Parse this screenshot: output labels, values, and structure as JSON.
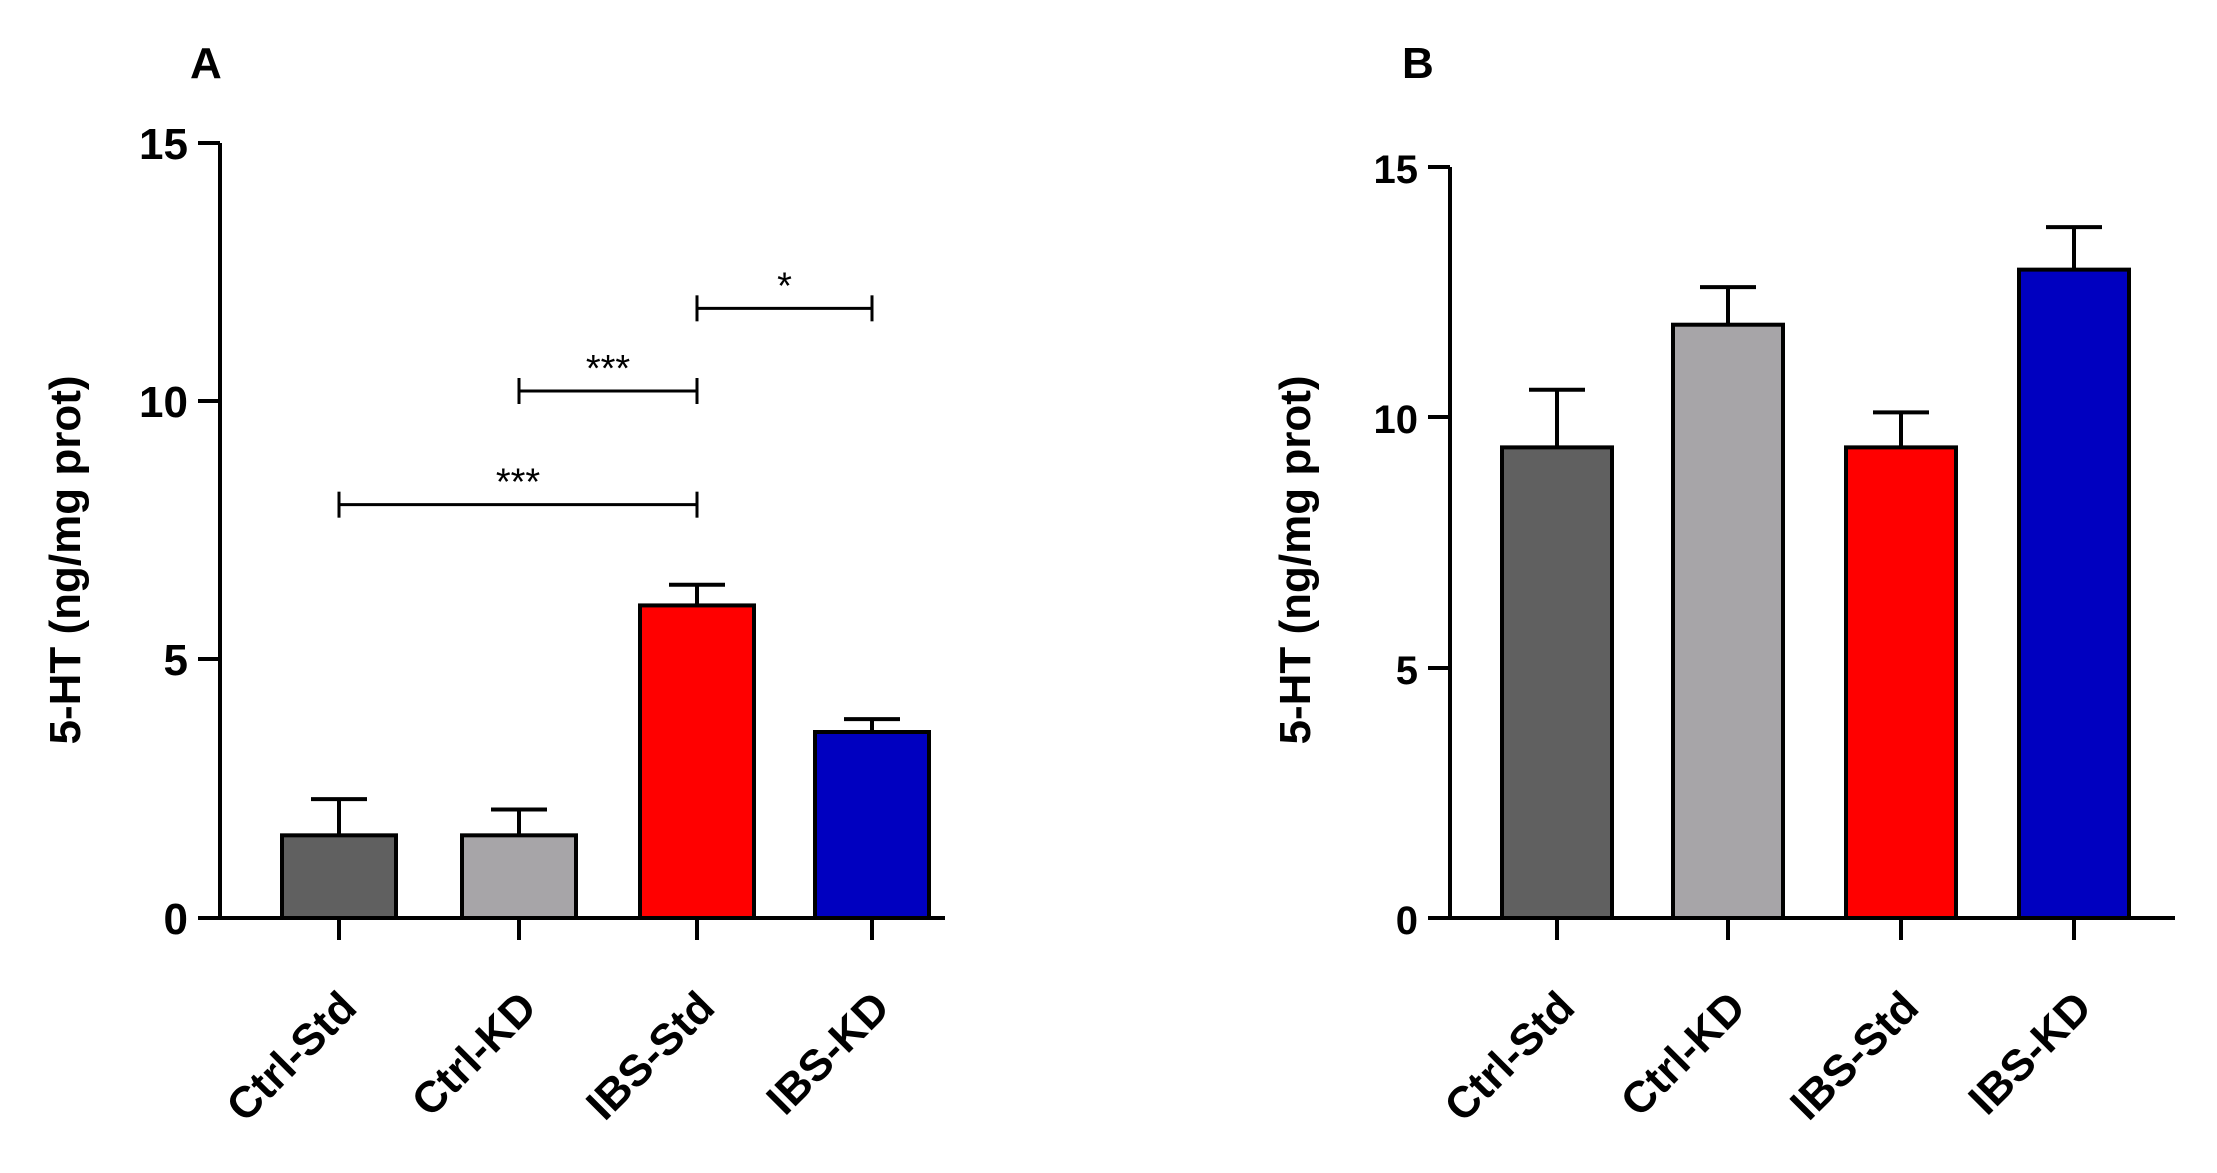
{
  "chart_data": [
    {
      "panel_label": "A",
      "type": "bar",
      "categories": [
        "Ctrl-Std",
        "Ctrl-KD",
        "IBS-Std",
        "IBS-KD"
      ],
      "values": [
        1.6,
        1.6,
        6.05,
        3.6
      ],
      "errors": [
        0.7,
        0.5,
        0.4,
        0.25
      ],
      "colors": [
        "#606060",
        "#a7a5a8",
        "#ff0000",
        "#0000c0"
      ],
      "ylabel": "5-HT (ng/mg prot)",
      "xlabel": "",
      "ylim": [
        0,
        15
      ],
      "yticks": [
        "0",
        "5",
        "10",
        "15"
      ],
      "significance": [
        {
          "from": 0,
          "to": 2,
          "y": 8.0,
          "label": "***"
        },
        {
          "from": 1,
          "to": 2,
          "y": 10.2,
          "label": "***"
        },
        {
          "from": 2,
          "to": 3,
          "y": 11.8,
          "label": "*"
        }
      ]
    },
    {
      "panel_label": "B",
      "type": "bar",
      "categories": [
        "Ctrl-Std",
        "Ctrl-KD",
        "IBS-Std",
        "IBS-KD"
      ],
      "values": [
        9.4,
        11.85,
        9.4,
        12.95
      ],
      "errors": [
        1.15,
        0.75,
        0.7,
        0.85
      ],
      "colors": [
        "#606060",
        "#a7a5a8",
        "#ff0000",
        "#0000c0"
      ],
      "ylabel": "5-HT (ng/mg prot)",
      "xlabel": "",
      "ylim": [
        0,
        15
      ],
      "yticks": [
        "0",
        "5",
        "10",
        "15"
      ],
      "significance": []
    }
  ]
}
